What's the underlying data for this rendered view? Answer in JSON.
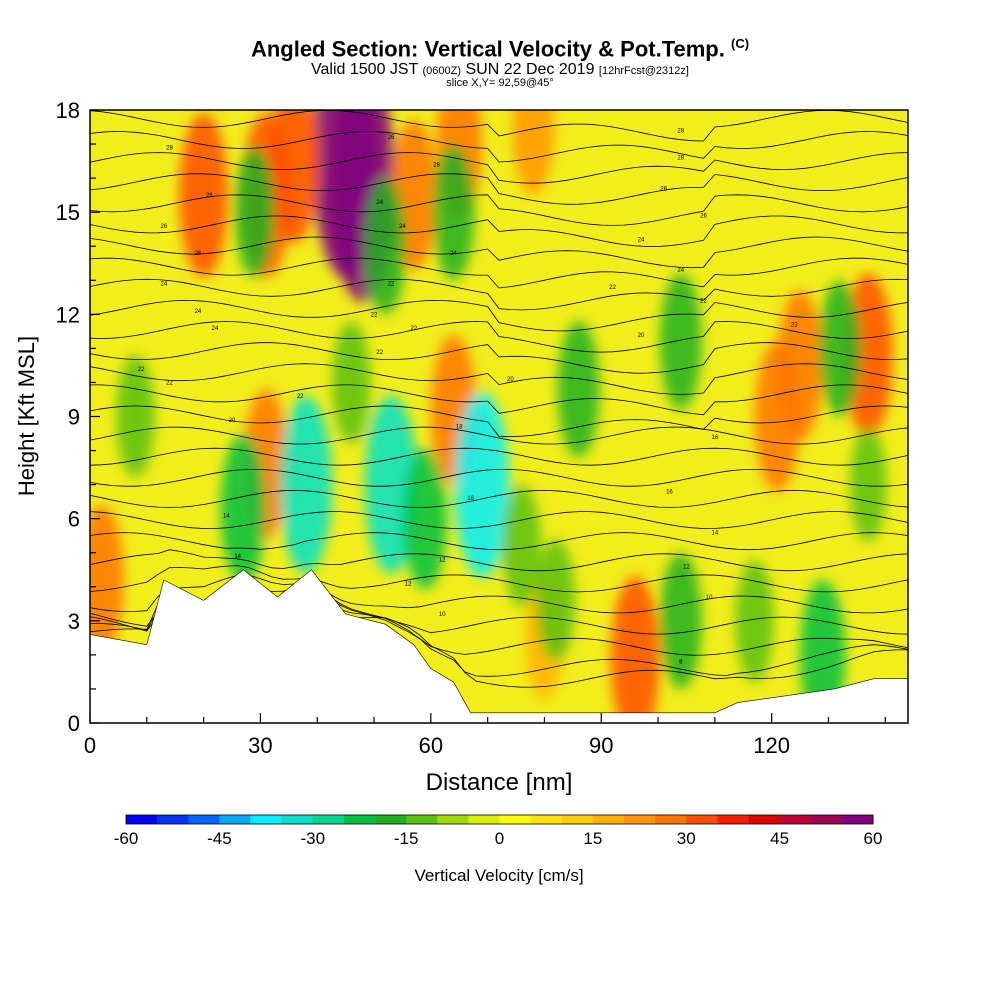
{
  "header": {
    "title_main": "Angled Section: Vertical Velocity & Pot.Temp.",
    "title_mark": "(C)",
    "valid_a": "Valid 1500 JST",
    "valid_b": "(0600Z)",
    "valid_c": "SUN 22 Dec 2019",
    "valid_d": "[12hrFcst@2312z]",
    "slice": "slice X,Y= 92,59@45°"
  },
  "chart_data": {
    "type": "heatmap",
    "xlabel": "Distance [nm]",
    "ylabel": "Height [Kft MSL]",
    "xlim": [
      0,
      144
    ],
    "ylim": [
      0,
      18
    ],
    "x_ticks": [
      0,
      30,
      60,
      90,
      120
    ],
    "y_ticks": [
      0,
      3,
      6,
      9,
      12,
      15,
      18
    ],
    "colorbar": {
      "label": "Vertical Velocity [cm/s]",
      "range": [
        -60,
        60
      ],
      "step": 5,
      "tick_values": [
        -60,
        -45,
        -30,
        -15,
        0,
        15,
        30,
        45,
        60
      ],
      "tick_labels": [
        "-60",
        "-45",
        "-30",
        "-15",
        "0",
        "15",
        "30",
        "45",
        "60"
      ],
      "colors": [
        "#0000ff",
        "#0033ff",
        "#0066ff",
        "#00aaff",
        "#00eeff",
        "#00e0c8",
        "#00d890",
        "#00c040",
        "#20b020",
        "#5ac010",
        "#a0d800",
        "#d8f000",
        "#ffff00",
        "#ffe600",
        "#ffcc00",
        "#ffb000",
        "#ff9500",
        "#ff7400",
        "#ff4c00",
        "#ff1a00",
        "#e00000",
        "#c00030",
        "#a00050",
        "#800080"
      ]
    },
    "terrain_kft": [
      [
        0,
        2.6
      ],
      [
        10,
        2.3
      ],
      [
        13,
        4.2
      ],
      [
        20,
        3.6
      ],
      [
        27,
        4.5
      ],
      [
        33,
        3.7
      ],
      [
        39,
        4.5
      ],
      [
        45,
        3.2
      ],
      [
        52,
        2.9
      ],
      [
        57,
        2.3
      ],
      [
        60,
        1.6
      ],
      [
        64,
        1.2
      ],
      [
        67,
        0.3
      ],
      [
        90,
        0.3
      ],
      [
        110,
        0.3
      ],
      [
        114,
        0.6
      ],
      [
        131,
        1.0
      ],
      [
        138,
        1.3
      ],
      [
        144,
        1.3
      ]
    ],
    "isentrope_labels": [
      {
        "x": 14,
        "y": 16.9,
        "text": "28"
      },
      {
        "x": 21,
        "y": 15.5,
        "text": "28"
      },
      {
        "x": 13,
        "y": 14.6,
        "text": "26"
      },
      {
        "x": 19,
        "y": 13.8,
        "text": "26"
      },
      {
        "x": 13,
        "y": 12.9,
        "text": "24"
      },
      {
        "x": 19,
        "y": 12.1,
        "text": "24"
      },
      {
        "x": 22,
        "y": 11.6,
        "text": "24"
      },
      {
        "x": 9,
        "y": 10.4,
        "text": "22"
      },
      {
        "x": 14,
        "y": 10.0,
        "text": "22"
      },
      {
        "x": 37,
        "y": 9.6,
        "text": "22"
      },
      {
        "x": 25,
        "y": 8.9,
        "text": "20"
      },
      {
        "x": 53,
        "y": 17.2,
        "text": "26"
      },
      {
        "x": 51,
        "y": 15.3,
        "text": "24"
      },
      {
        "x": 55,
        "y": 14.6,
        "text": "24"
      },
      {
        "x": 61,
        "y": 16.4,
        "text": "28"
      },
      {
        "x": 64,
        "y": 13.8,
        "text": "24"
      },
      {
        "x": 53,
        "y": 12.9,
        "text": "22"
      },
      {
        "x": 50,
        "y": 12.0,
        "text": "22"
      },
      {
        "x": 57,
        "y": 11.6,
        "text": "22"
      },
      {
        "x": 51,
        "y": 10.9,
        "text": "22"
      },
      {
        "x": 74,
        "y": 10.1,
        "text": "20"
      },
      {
        "x": 65,
        "y": 8.7,
        "text": "18"
      },
      {
        "x": 67,
        "y": 6.6,
        "text": "16"
      },
      {
        "x": 24,
        "y": 6.1,
        "text": "14"
      },
      {
        "x": 26,
        "y": 4.9,
        "text": "14"
      },
      {
        "x": 62,
        "y": 4.8,
        "text": "12"
      },
      {
        "x": 56,
        "y": 4.1,
        "text": "12"
      },
      {
        "x": 62,
        "y": 3.2,
        "text": "10"
      },
      {
        "x": 104,
        "y": 17.4,
        "text": "28"
      },
      {
        "x": 104,
        "y": 16.6,
        "text": "28"
      },
      {
        "x": 101,
        "y": 15.7,
        "text": "26"
      },
      {
        "x": 108,
        "y": 14.9,
        "text": "26"
      },
      {
        "x": 97,
        "y": 14.2,
        "text": "24"
      },
      {
        "x": 104,
        "y": 13.3,
        "text": "24"
      },
      {
        "x": 92,
        "y": 12.8,
        "text": "22"
      },
      {
        "x": 108,
        "y": 12.4,
        "text": "22"
      },
      {
        "x": 97,
        "y": 11.4,
        "text": "20"
      },
      {
        "x": 124,
        "y": 11.7,
        "text": "22"
      },
      {
        "x": 110,
        "y": 8.4,
        "text": "16"
      },
      {
        "x": 102,
        "y": 6.8,
        "text": "16"
      },
      {
        "x": 110,
        "y": 5.6,
        "text": "14"
      },
      {
        "x": 105,
        "y": 4.6,
        "text": "12"
      },
      {
        "x": 109,
        "y": 3.7,
        "text": "10"
      },
      {
        "x": 104,
        "y": 1.8,
        "text": "8"
      }
    ],
    "features": [
      {
        "type": "updraft",
        "x": 45,
        "y": 16.5,
        "value": 55
      },
      {
        "type": "updraft",
        "x": 48,
        "y": 15.8,
        "value": 55
      },
      {
        "type": "updraft",
        "x": 36,
        "y": 16.5,
        "value": 30
      },
      {
        "type": "updraft",
        "x": 20,
        "y": 15.5,
        "value": 30
      },
      {
        "type": "updraft",
        "x": 65,
        "y": 17.0,
        "value": 25
      },
      {
        "type": "updraft",
        "x": 31,
        "y": 15.5,
        "value": 30
      },
      {
        "type": "updraft",
        "x": 57,
        "y": 15.5,
        "value": 25
      },
      {
        "type": "updraft",
        "x": 137,
        "y": 10.8,
        "value": 30
      },
      {
        "type": "updraft",
        "x": 125,
        "y": 10.5,
        "value": 25
      },
      {
        "type": "updraft",
        "x": 96,
        "y": 1.9,
        "value": 30
      },
      {
        "type": "updraft",
        "x": 64,
        "y": 9.2,
        "value": 25
      },
      {
        "type": "updraft",
        "x": 31,
        "y": 7.6,
        "value": 25
      },
      {
        "type": "updraft",
        "x": 2,
        "y": 4.2,
        "value": 25
      },
      {
        "type": "updraft",
        "x": 121,
        "y": 9.0,
        "value": 25
      },
      {
        "type": "updraft",
        "x": 78,
        "y": 17.5,
        "value": 20
      },
      {
        "type": "updraft",
        "x": 80,
        "y": 2.5,
        "value": 15
      },
      {
        "type": "downdraft",
        "x": 38,
        "y": 7.0,
        "value": -35
      },
      {
        "type": "downdraft",
        "x": 53,
        "y": 7.0,
        "value": -35
      },
      {
        "type": "downdraft",
        "x": 69,
        "y": 7.0,
        "value": -38
      },
      {
        "type": "downdraft",
        "x": 27,
        "y": 6.3,
        "value": -25
      },
      {
        "type": "downdraft",
        "x": 59,
        "y": 6.0,
        "value": -22
      },
      {
        "type": "downdraft",
        "x": 104,
        "y": 11.2,
        "value": -20
      },
      {
        "type": "downdraft",
        "x": 86,
        "y": 9.8,
        "value": -20
      },
      {
        "type": "downdraft",
        "x": 104,
        "y": 3.0,
        "value": -20
      },
      {
        "type": "downdraft",
        "x": 129,
        "y": 2.0,
        "value": -25
      },
      {
        "type": "downdraft",
        "x": 132,
        "y": 11.0,
        "value": -20
      },
      {
        "type": "downdraft",
        "x": 46,
        "y": 10.0,
        "value": -15
      },
      {
        "type": "downdraft",
        "x": 64,
        "y": 15.0,
        "value": -20
      },
      {
        "type": "downdraft",
        "x": 52,
        "y": 14.0,
        "value": -20
      },
      {
        "type": "downdraft",
        "x": 29,
        "y": 15.0,
        "value": -18
      },
      {
        "type": "downdraft",
        "x": 8,
        "y": 9.0,
        "value": -15
      },
      {
        "type": "downdraft",
        "x": 82,
        "y": 3.6,
        "value": -15
      },
      {
        "type": "downdraft",
        "x": 76,
        "y": 5.2,
        "value": -15
      },
      {
        "type": "downdraft",
        "x": 117,
        "y": 3.0,
        "value": -15
      },
      {
        "type": "downdraft",
        "x": 137,
        "y": 7.0,
        "value": -12
      }
    ]
  }
}
